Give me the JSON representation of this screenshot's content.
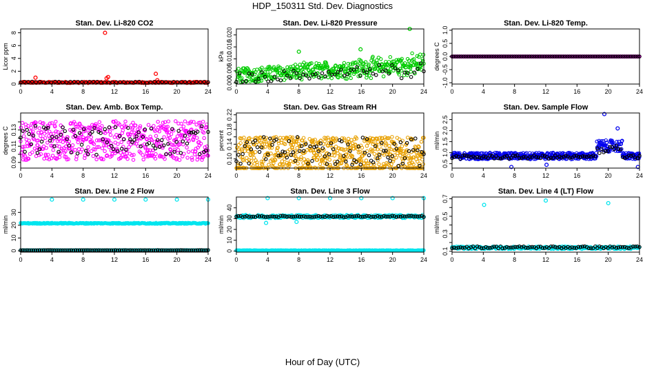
{
  "figure": {
    "title": "HDP_150311  Std. Dev. Diagnostics",
    "xlabel": "Hour of Day (UTC)"
  },
  "chart_data": [
    {
      "type": "scatter",
      "title": "Stan. Dev. Li-820 CO2",
      "ylabel": "Licor ppm",
      "xlim": [
        0,
        24
      ],
      "ylim": [
        0,
        8.6
      ],
      "xticks": [
        0,
        4,
        8,
        12,
        16,
        20,
        24
      ],
      "yticks": [
        0,
        2,
        4,
        6,
        8
      ],
      "series": [
        {
          "name": "red",
          "color": "#ff0000",
          "baseline": 0.25,
          "jitter": 0.1,
          "count": 240,
          "outliers": [
            [
              1.9,
              1.0
            ],
            [
              10.8,
              8.0
            ],
            [
              11.0,
              0.9
            ],
            [
              11.2,
              1.1
            ],
            [
              17.3,
              1.6
            ],
            [
              17.5,
              0.6
            ]
          ]
        },
        {
          "name": "black",
          "color": "#000000",
          "baseline": 0.3,
          "jitter": 0.08,
          "count": 50,
          "outliers": []
        }
      ]
    },
    {
      "type": "scatter",
      "title": "Stan. Dev. Li-820 Pressure",
      "ylabel": "kPa",
      "xlim": [
        0,
        24
      ],
      "ylim": [
        -0.0005,
        0.0225
      ],
      "xticks": [
        0,
        4,
        8,
        12,
        16,
        20,
        24
      ],
      "yticks": [
        0.0,
        0.005,
        0.01,
        0.015,
        0.02
      ],
      "ytick_labels": [
        "0.000",
        "0.005",
        "0.010",
        "0.015",
        "0.020"
      ],
      "series": [
        {
          "name": "green",
          "color": "#00cc00",
          "baseline": 0.003,
          "trend": 0.0002,
          "jitter": 0.003,
          "count": 420,
          "outliers": [
            [
              8.0,
              0.013
            ],
            [
              15.9,
              0.014
            ],
            [
              22.2,
              0.0225
            ]
          ]
        },
        {
          "name": "black",
          "color": "#000000",
          "baseline": 0.002,
          "trend": 0.00015,
          "jitter": 0.002,
          "count": 60,
          "outliers": []
        }
      ]
    },
    {
      "type": "scatter",
      "title": "Stan. Dev. Li-820 Temp.",
      "ylabel": "degrees C",
      "xlim": [
        0,
        24
      ],
      "ylim": [
        -1.05,
        1.05
      ],
      "xticks": [
        0,
        4,
        8,
        12,
        16,
        20,
        24
      ],
      "yticks": [
        -1.0,
        -0.5,
        0.0,
        0.5,
        1.0
      ],
      "ytick_labels": [
        "-1.0",
        "-0.5",
        "0.0",
        "0.5",
        "1.0"
      ],
      "series": [
        {
          "name": "magenta",
          "color": "#ff00ff",
          "baseline": 0.0,
          "jitter": 0.0,
          "count": 300,
          "outliers": []
        },
        {
          "name": "black",
          "color": "#000000",
          "baseline": 0.0,
          "jitter": 0.0,
          "count": 100,
          "outliers": []
        }
      ]
    },
    {
      "type": "scatter",
      "title": "Stan. Dev. Amb. Box Temp.",
      "ylabel": "degrees C",
      "xlim": [
        0,
        24
      ],
      "ylim": [
        0.083,
        0.151
      ],
      "xticks": [
        0,
        4,
        8,
        12,
        16,
        20,
        24
      ],
      "yticks": [
        0.09,
        0.1,
        0.11,
        0.12,
        0.13,
        0.14
      ],
      "ytick_labels": [
        "0.09",
        "",
        "0.11",
        "",
        "0.13",
        ""
      ],
      "series": [
        {
          "name": "magenta",
          "color": "#ff00ff",
          "baseline": 0.117,
          "jitter": 0.024,
          "count": 520,
          "outliers": []
        },
        {
          "name": "black",
          "color": "#000000",
          "baseline": 0.117,
          "jitter": 0.018,
          "count": 90,
          "outliers": []
        }
      ]
    },
    {
      "type": "scatter",
      "title": "Stan. Dev. Gas Stream RH",
      "ylabel": "percent",
      "xlim": [
        0,
        24
      ],
      "ylim": [
        0.075,
        0.225
      ],
      "xticks": [
        0,
        4,
        8,
        12,
        16,
        20,
        24
      ],
      "yticks": [
        0.1,
        0.12,
        0.14,
        0.16,
        0.18,
        0.2,
        0.22
      ],
      "ytick_labels": [
        "0.10",
        "",
        "0.14",
        "",
        "0.18",
        "",
        "0.22"
      ],
      "series": [
        {
          "name": "orange",
          "color": "#e8a000",
          "baseline": 0.11,
          "jitter": 0.05,
          "count": 620,
          "outliers": []
        },
        {
          "name": "black",
          "color": "#000000",
          "baseline": 0.12,
          "jitter": 0.04,
          "count": 90,
          "outliers": []
        }
      ]
    },
    {
      "type": "scatter",
      "title": "Stan. Dev. Sample Flow",
      "ylabel": "ml/min",
      "xlim": [
        0,
        24
      ],
      "ylim": [
        0.3,
        2.8
      ],
      "xticks": [
        0,
        4,
        8,
        12,
        16,
        20,
        24
      ],
      "yticks": [
        0.5,
        1.0,
        1.5,
        2.0,
        2.5
      ],
      "ytick_labels": [
        "0.5",
        "1.0",
        "1.5",
        "2.0",
        "2.5"
      ],
      "series": [
        {
          "name": "blue",
          "color": "#0000ee",
          "baseline": 0.85,
          "jitter": 0.15,
          "count": 520,
          "bump": [
            18.5,
            21.8,
            1.3
          ],
          "outliers": [
            [
              7.6,
              0.35
            ],
            [
              12.1,
              0.45
            ],
            [
              19.5,
              2.75
            ],
            [
              21.2,
              2.1
            ],
            [
              23.8,
              0.35
            ]
          ]
        },
        {
          "name": "black",
          "color": "#000000",
          "baseline": 0.8,
          "jitter": 0.08,
          "count": 90,
          "bump": [
            18.5,
            21.8,
            1.1
          ],
          "outliers": []
        }
      ]
    },
    {
      "type": "scatter",
      "title": "Stan. Dev. Line 2 Flow",
      "ylabel": "ml/min",
      "xlim": [
        0,
        24
      ],
      "ylim": [
        -1,
        42
      ],
      "xticks": [
        0,
        4,
        8,
        12,
        16,
        20,
        24
      ],
      "yticks": [
        0,
        10,
        20,
        30
      ],
      "series": [
        {
          "name": "cyan-high",
          "color": "#00e5ee",
          "baseline": 21.5,
          "jitter": 0.4,
          "count": 300,
          "outliers": [
            [
              4.0,
              40
            ],
            [
              8.0,
              40
            ],
            [
              12.0,
              40
            ],
            [
              16.0,
              40
            ],
            [
              20.0,
              40
            ],
            [
              24.0,
              40
            ]
          ]
        },
        {
          "name": "cyan-low",
          "color": "#00e5ee",
          "baseline": 0.5,
          "jitter": 0.1,
          "count": 200,
          "outliers": []
        },
        {
          "name": "black",
          "color": "#000000",
          "baseline": 0.5,
          "jitter": 0.1,
          "count": 90,
          "outliers": []
        }
      ]
    },
    {
      "type": "scatter",
      "title": "Stan. Dev. Line 3 Flow",
      "ylabel": "ml/min",
      "xlim": [
        0,
        24
      ],
      "ylim": [
        -1,
        50
      ],
      "xticks": [
        0,
        4,
        8,
        12,
        16,
        20,
        24
      ],
      "yticks": [
        0,
        10,
        20,
        30,
        40
      ],
      "series": [
        {
          "name": "cyan-high",
          "color": "#00e5ee",
          "baseline": 32,
          "jitter": 1.5,
          "count": 300,
          "outliers": [
            [
              4.0,
              49
            ],
            [
              8.0,
              49
            ],
            [
              12.0,
              49
            ],
            [
              16.0,
              49
            ],
            [
              20.0,
              49
            ],
            [
              24.0,
              49
            ],
            [
              3.8,
              26
            ],
            [
              7.7,
              27
            ]
          ]
        },
        {
          "name": "cyan-low",
          "color": "#00e5ee",
          "baseline": 0.6,
          "jitter": 0.2,
          "count": 220,
          "outliers": []
        },
        {
          "name": "black",
          "color": "#000000",
          "baseline": 32,
          "jitter": 0.6,
          "count": 90,
          "outliers": []
        }
      ]
    },
    {
      "type": "scatter",
      "title": "Stan. Dev. Line 4 (LT) Flow",
      "ylabel": "ml/min",
      "xlim": [
        0,
        24
      ],
      "ylim": [
        0.09,
        0.72
      ],
      "xticks": [
        0,
        4,
        8,
        12,
        16,
        20,
        24
      ],
      "yticks": [
        0.1,
        0.2,
        0.3,
        0.4,
        0.5,
        0.6,
        0.7
      ],
      "ytick_labels": [
        "0.1",
        "",
        "0.3",
        "",
        "0.5",
        "",
        "0.7"
      ],
      "series": [
        {
          "name": "cyan",
          "color": "#00e5ee",
          "baseline": 0.14,
          "jitter": 0.015,
          "count": 300,
          "outliers": [
            [
              4.1,
              0.63
            ],
            [
              12.0,
              0.68
            ],
            [
              20.0,
              0.65
            ]
          ]
        },
        {
          "name": "black",
          "color": "#000000",
          "baseline": 0.145,
          "jitter": 0.012,
          "count": 90,
          "outliers": []
        }
      ]
    }
  ]
}
